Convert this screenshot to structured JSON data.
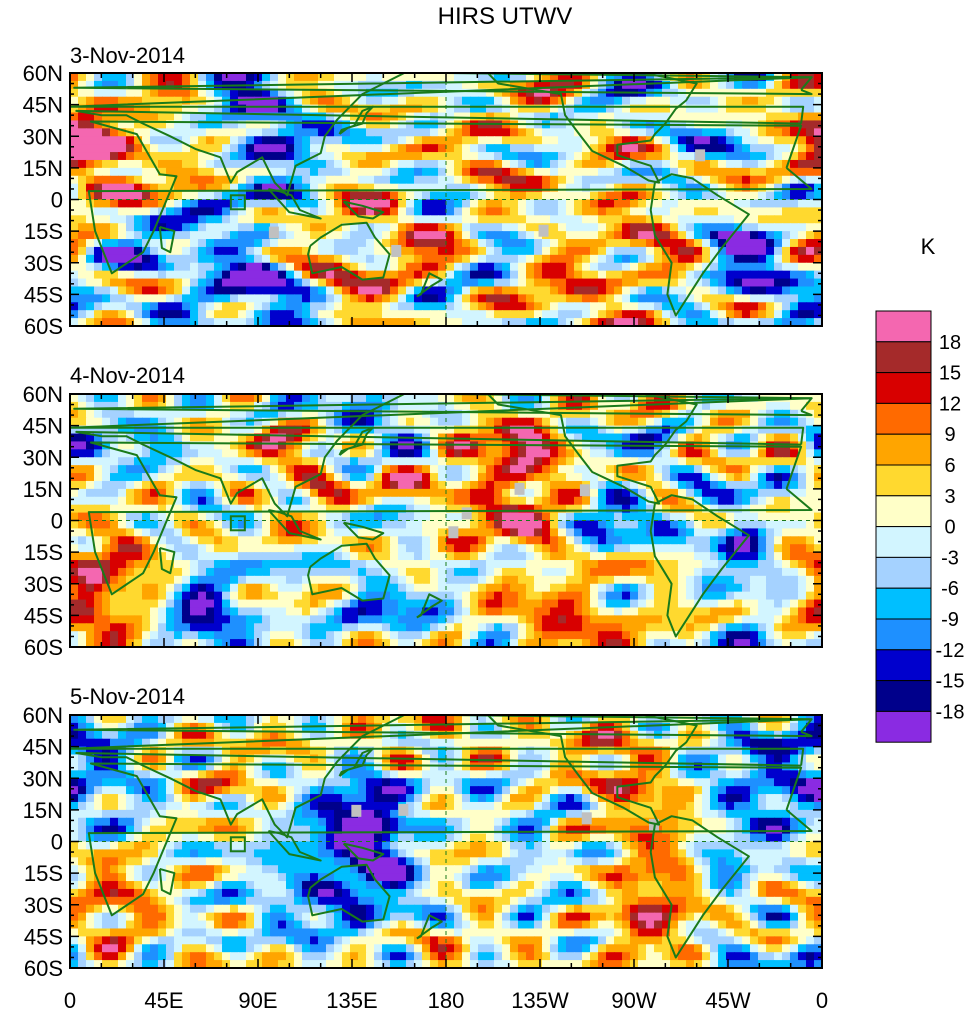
{
  "chart_data": {
    "type": "heatmap",
    "title": "HIRS UTWV",
    "panels": [
      {
        "label": "3-Nov-2014",
        "seed": 11
      },
      {
        "label": "4-Nov-2014",
        "seed": 23
      },
      {
        "label": "5-Nov-2014",
        "seed": 37
      }
    ],
    "x_tick_labels": [
      "0",
      "45E",
      "90E",
      "135E",
      "180",
      "135W",
      "90W",
      "45W",
      "0"
    ],
    "y_tick_labels": [
      "60N",
      "45N",
      "30N",
      "15N",
      "0",
      "15S",
      "30S",
      "45S",
      "60S"
    ],
    "x_range": [
      0,
      360
    ],
    "y_range": [
      -60,
      60
    ],
    "colorbar": {
      "unit": "K",
      "levels": [
        "18",
        "15",
        "12",
        "9",
        "6",
        "3",
        "0",
        "-3",
        "-6",
        "-9",
        "-12",
        "-15",
        "-18"
      ],
      "colors": [
        "#f467b0",
        "#a52a2a",
        "#d80000",
        "#ff6a00",
        "#ffa500",
        "#ffd92f",
        "#ffffc8",
        "#d2f5ff",
        "#a5d2ff",
        "#00bfff",
        "#1e90ff",
        "#0000cd",
        "#00008b",
        "#8a2be2"
      ],
      "value_range": [
        -21,
        21
      ]
    },
    "coastline_color": "#1a7a1a",
    "missing_color": "#c0c0c0"
  }
}
